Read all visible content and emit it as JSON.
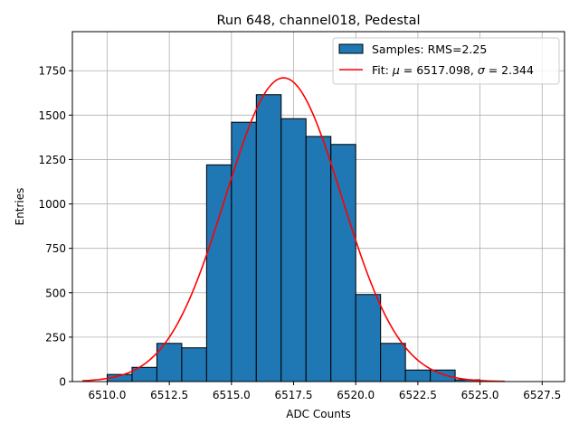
{
  "chart_data": {
    "type": "bar",
    "title": "Run 648, channel018, Pedestal",
    "xlabel": "ADC Counts",
    "ylabel": "Entries",
    "xlim": [
      6508.6,
      6528.4
    ],
    "ylim": [
      0,
      1970
    ],
    "grid": true,
    "x_ticks": [
      6510.0,
      6512.5,
      6515.0,
      6517.5,
      6520.0,
      6522.5,
      6525.0,
      6527.5
    ],
    "x_tick_labels": [
      "6510.0",
      "6512.5",
      "6515.0",
      "6517.5",
      "6520.0",
      "6522.5",
      "6525.0",
      "6527.5"
    ],
    "y_ticks": [
      0,
      250,
      500,
      750,
      1000,
      1250,
      1500,
      1750
    ],
    "y_tick_labels": [
      "0",
      "250",
      "500",
      "750",
      "1000",
      "1250",
      "1500",
      "1750"
    ],
    "histogram": {
      "name": "Samples: RMS=2.25",
      "color": "#1f77b4",
      "edge_color": "#000000",
      "bin_edges": [
        6510,
        6511,
        6512,
        6513,
        6514,
        6515,
        6516,
        6517,
        6518,
        6519,
        6520,
        6521,
        6522,
        6523,
        6524,
        6525,
        6526,
        6527,
        6528
      ],
      "counts": [
        40,
        80,
        215,
        190,
        1220,
        1460,
        1615,
        1480,
        1380,
        1335,
        490,
        215,
        65,
        65,
        10,
        0,
        0,
        0
      ]
    },
    "fit": {
      "name": "Fit: μ = 6517.098, σ = 2.344",
      "color": "#ff0000",
      "function": "gaussian",
      "mu": 6517.098,
      "sigma": 2.344,
      "amplitude": 1710,
      "x_range": [
        6509,
        6526
      ]
    },
    "legend": {
      "position": "top-right",
      "entries": [
        {
          "label_prefix": "Samples: RMS=2.25",
          "kind": "patch"
        },
        {
          "label_prefix": "Fit: ",
          "label_italic": true,
          "kind": "line"
        }
      ],
      "fit_label_parts": {
        "prefix": "Fit: ",
        "mu_symbol": "μ",
        "mu_text": " = 6517.098, ",
        "sigma_symbol": "σ",
        "sigma_text": " = 2.344"
      }
    }
  }
}
